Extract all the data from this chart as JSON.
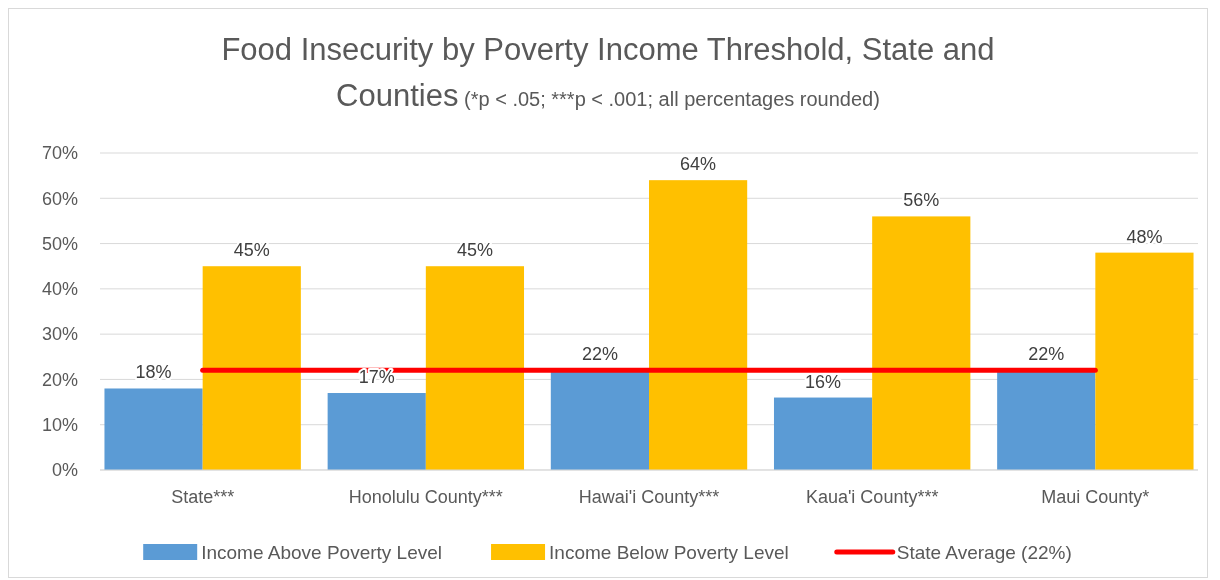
{
  "chart_data": {
    "type": "bar",
    "title": "Food Insecurity by Poverty Income Threshold, State and Counties",
    "subtitle": "(*p < .05; ***p < .001; all percentages rounded)",
    "categories": [
      "State***",
      "Honolulu County***",
      "Hawai'i County***",
      "Kaua'i County***",
      "Maui County*"
    ],
    "series": [
      {
        "name": "Income Above Poverty Level",
        "color": "#5b9bd5",
        "values": [
          18,
          17,
          22,
          16,
          22
        ],
        "value_labels": [
          "18%",
          "17%",
          "22%",
          "16%",
          "22%"
        ]
      },
      {
        "name": "Income Below Poverty Level",
        "color": "#ffc000",
        "values": [
          45,
          45,
          64,
          56,
          48
        ],
        "value_labels": [
          "45%",
          "45%",
          "64%",
          "56%",
          "48%"
        ]
      },
      {
        "name": "State Average (22%)",
        "type": "line",
        "color": "#ff0000",
        "values": [
          22,
          22,
          22,
          22,
          22
        ]
      }
    ],
    "ylim": [
      0,
      70
    ],
    "yticks": [
      {
        "value": 0,
        "label": "0%"
      },
      {
        "value": 10,
        "label": "10%"
      },
      {
        "value": 20,
        "label": "20%"
      },
      {
        "value": 30,
        "label": "30%"
      },
      {
        "value": 40,
        "label": "40%"
      },
      {
        "value": 50,
        "label": "50%"
      },
      {
        "value": 60,
        "label": "60%"
      },
      {
        "value": 70,
        "label": "70%"
      }
    ],
    "grid": "y",
    "legend": "bottom"
  }
}
